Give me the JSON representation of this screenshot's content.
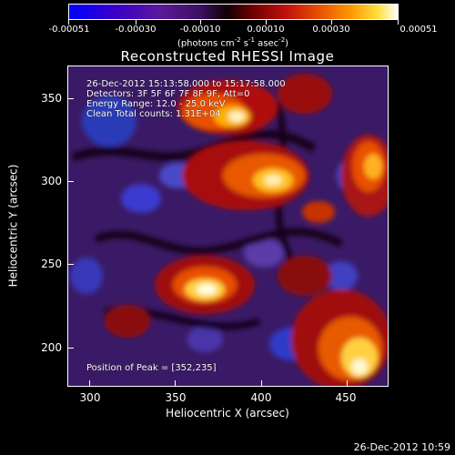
{
  "colorbar": {
    "tick_labels": [
      "-0.00051",
      "-0.00030",
      "-0.00010",
      "0.00010",
      "0.00030",
      "0.00051"
    ],
    "units_main": "(photons cm",
    "units_exp1": "-2",
    "units_mid": " s",
    "units_exp2": "-1",
    "units_end": " asec",
    "units_exp3": "-2",
    "units_close": ")",
    "colormap": [
      "#0000ff",
      "#3a00d0",
      "#5a1aa0",
      "#4a1570",
      "#200010",
      "#700000",
      "#c01010",
      "#e04a00",
      "#ff8a00",
      "#ffd020",
      "#ffffff"
    ]
  },
  "title": "Reconstructed RHESSI Image",
  "info": {
    "line1": "26-Dec-2012 15:13:58.000 to 15:17:58.000",
    "line2": "Detectors: 3F 5F 6F 7F 8F 9F, Att=0",
    "line3": "Energy Range: 12.0 - 25.0 keV",
    "line4": "Clean     Total counts: 1.31E+04",
    "peak": "Position of Peak = [352,235]"
  },
  "axes": {
    "x_title": "Heliocentric X (arcsec)",
    "y_title": "Heliocentric Y (arcsec)",
    "x_ticks": [
      "300",
      "350",
      "400",
      "450"
    ],
    "y_ticks": [
      "200",
      "250",
      "300",
      "350"
    ]
  },
  "timestamp": "26-Dec-2012 10:59"
}
